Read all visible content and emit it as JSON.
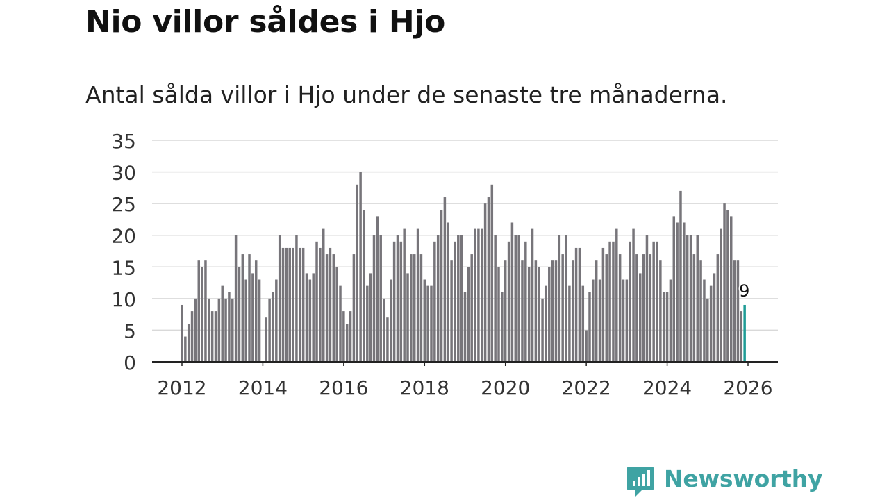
{
  "title": "Nio villor såldes i Hjo",
  "subtitle": "Antal sålda villor i Hjo under de senaste tre månaderna.",
  "brand": {
    "name": "Newsworthy",
    "icon": "newsworthy-logo-icon",
    "color": "#3fa3a3"
  },
  "colors": {
    "bar": "#77757a",
    "highlight": "#1f9c96",
    "grid": "#d9d9d9",
    "axis": "#222222"
  },
  "chart_data": {
    "type": "bar",
    "title": "Nio villor såldes i Hjo",
    "xlabel": "",
    "ylabel": "",
    "ylim": [
      0,
      35
    ],
    "yticks": [
      0,
      5,
      10,
      15,
      20,
      25,
      30,
      35
    ],
    "xticks": [
      "2012",
      "2014",
      "2016",
      "2018",
      "2020",
      "2022",
      "2024",
      "2026"
    ],
    "grid": true,
    "start": "2012-01",
    "values": [
      9,
      4,
      6,
      8,
      10,
      16,
      15,
      16,
      10,
      8,
      8,
      10,
      12,
      10,
      11,
      10,
      20,
      15,
      17,
      13,
      17,
      14,
      16,
      13,
      0,
      7,
      10,
      11,
      13,
      20,
      18,
      18,
      18,
      18,
      20,
      18,
      18,
      14,
      13,
      14,
      19,
      18,
      21,
      17,
      18,
      17,
      15,
      12,
      8,
      6,
      8,
      17,
      28,
      30,
      24,
      12,
      14,
      20,
      23,
      20,
      10,
      7,
      13,
      19,
      20,
      19,
      21,
      14,
      17,
      17,
      21,
      17,
      13,
      12,
      12,
      19,
      20,
      24,
      26,
      22,
      16,
      19,
      20,
      20,
      11,
      15,
      17,
      21,
      21,
      21,
      25,
      26,
      28,
      20,
      15,
      11,
      16,
      19,
      22,
      20,
      20,
      16,
      19,
      15,
      21,
      16,
      15,
      10,
      12,
      15,
      16,
      16,
      20,
      17,
      20,
      12,
      16,
      18,
      18,
      12,
      5,
      11,
      13,
      16,
      13,
      18,
      17,
      19,
      19,
      21,
      17,
      13,
      13,
      19,
      21,
      17,
      14,
      17,
      20,
      17,
      19,
      19,
      16,
      11,
      11,
      13,
      23,
      22,
      27,
      22,
      20,
      20,
      17,
      20,
      16,
      13,
      10,
      12,
      14,
      17,
      21,
      25,
      24,
      23,
      16,
      16,
      8,
      9
    ],
    "highlight": {
      "label": "2026-01",
      "value": 9,
      "data_label": "9"
    }
  }
}
